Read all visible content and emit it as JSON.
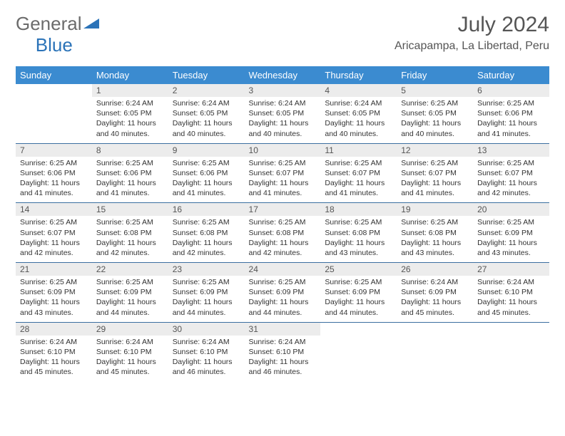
{
  "brand": {
    "word1": "General",
    "word2": "Blue",
    "icon_color": "#2b73b8"
  },
  "title": "July 2024",
  "location": "Aricapampa, La Libertad, Peru",
  "colors": {
    "header_bg": "#3b8bd0",
    "header_fg": "#ffffff",
    "daynum_bg": "#ececec",
    "row_border": "#3b6fa0",
    "text": "#333333",
    "title_color": "#555555"
  },
  "table": {
    "columns": [
      "Sunday",
      "Monday",
      "Tuesday",
      "Wednesday",
      "Thursday",
      "Friday",
      "Saturday"
    ],
    "weeks": [
      [
        {
          "n": "",
          "lines": []
        },
        {
          "n": "1",
          "lines": [
            "Sunrise: 6:24 AM",
            "Sunset: 6:05 PM",
            "Daylight: 11 hours",
            "and 40 minutes."
          ]
        },
        {
          "n": "2",
          "lines": [
            "Sunrise: 6:24 AM",
            "Sunset: 6:05 PM",
            "Daylight: 11 hours",
            "and 40 minutes."
          ]
        },
        {
          "n": "3",
          "lines": [
            "Sunrise: 6:24 AM",
            "Sunset: 6:05 PM",
            "Daylight: 11 hours",
            "and 40 minutes."
          ]
        },
        {
          "n": "4",
          "lines": [
            "Sunrise: 6:24 AM",
            "Sunset: 6:05 PM",
            "Daylight: 11 hours",
            "and 40 minutes."
          ]
        },
        {
          "n": "5",
          "lines": [
            "Sunrise: 6:25 AM",
            "Sunset: 6:05 PM",
            "Daylight: 11 hours",
            "and 40 minutes."
          ]
        },
        {
          "n": "6",
          "lines": [
            "Sunrise: 6:25 AM",
            "Sunset: 6:06 PM",
            "Daylight: 11 hours",
            "and 41 minutes."
          ]
        }
      ],
      [
        {
          "n": "7",
          "lines": [
            "Sunrise: 6:25 AM",
            "Sunset: 6:06 PM",
            "Daylight: 11 hours",
            "and 41 minutes."
          ]
        },
        {
          "n": "8",
          "lines": [
            "Sunrise: 6:25 AM",
            "Sunset: 6:06 PM",
            "Daylight: 11 hours",
            "and 41 minutes."
          ]
        },
        {
          "n": "9",
          "lines": [
            "Sunrise: 6:25 AM",
            "Sunset: 6:06 PM",
            "Daylight: 11 hours",
            "and 41 minutes."
          ]
        },
        {
          "n": "10",
          "lines": [
            "Sunrise: 6:25 AM",
            "Sunset: 6:07 PM",
            "Daylight: 11 hours",
            "and 41 minutes."
          ]
        },
        {
          "n": "11",
          "lines": [
            "Sunrise: 6:25 AM",
            "Sunset: 6:07 PM",
            "Daylight: 11 hours",
            "and 41 minutes."
          ]
        },
        {
          "n": "12",
          "lines": [
            "Sunrise: 6:25 AM",
            "Sunset: 6:07 PM",
            "Daylight: 11 hours",
            "and 41 minutes."
          ]
        },
        {
          "n": "13",
          "lines": [
            "Sunrise: 6:25 AM",
            "Sunset: 6:07 PM",
            "Daylight: 11 hours",
            "and 42 minutes."
          ]
        }
      ],
      [
        {
          "n": "14",
          "lines": [
            "Sunrise: 6:25 AM",
            "Sunset: 6:07 PM",
            "Daylight: 11 hours",
            "and 42 minutes."
          ]
        },
        {
          "n": "15",
          "lines": [
            "Sunrise: 6:25 AM",
            "Sunset: 6:08 PM",
            "Daylight: 11 hours",
            "and 42 minutes."
          ]
        },
        {
          "n": "16",
          "lines": [
            "Sunrise: 6:25 AM",
            "Sunset: 6:08 PM",
            "Daylight: 11 hours",
            "and 42 minutes."
          ]
        },
        {
          "n": "17",
          "lines": [
            "Sunrise: 6:25 AM",
            "Sunset: 6:08 PM",
            "Daylight: 11 hours",
            "and 42 minutes."
          ]
        },
        {
          "n": "18",
          "lines": [
            "Sunrise: 6:25 AM",
            "Sunset: 6:08 PM",
            "Daylight: 11 hours",
            "and 43 minutes."
          ]
        },
        {
          "n": "19",
          "lines": [
            "Sunrise: 6:25 AM",
            "Sunset: 6:08 PM",
            "Daylight: 11 hours",
            "and 43 minutes."
          ]
        },
        {
          "n": "20",
          "lines": [
            "Sunrise: 6:25 AM",
            "Sunset: 6:09 PM",
            "Daylight: 11 hours",
            "and 43 minutes."
          ]
        }
      ],
      [
        {
          "n": "21",
          "lines": [
            "Sunrise: 6:25 AM",
            "Sunset: 6:09 PM",
            "Daylight: 11 hours",
            "and 43 minutes."
          ]
        },
        {
          "n": "22",
          "lines": [
            "Sunrise: 6:25 AM",
            "Sunset: 6:09 PM",
            "Daylight: 11 hours",
            "and 44 minutes."
          ]
        },
        {
          "n": "23",
          "lines": [
            "Sunrise: 6:25 AM",
            "Sunset: 6:09 PM",
            "Daylight: 11 hours",
            "and 44 minutes."
          ]
        },
        {
          "n": "24",
          "lines": [
            "Sunrise: 6:25 AM",
            "Sunset: 6:09 PM",
            "Daylight: 11 hours",
            "and 44 minutes."
          ]
        },
        {
          "n": "25",
          "lines": [
            "Sunrise: 6:25 AM",
            "Sunset: 6:09 PM",
            "Daylight: 11 hours",
            "and 44 minutes."
          ]
        },
        {
          "n": "26",
          "lines": [
            "Sunrise: 6:24 AM",
            "Sunset: 6:09 PM",
            "Daylight: 11 hours",
            "and 45 minutes."
          ]
        },
        {
          "n": "27",
          "lines": [
            "Sunrise: 6:24 AM",
            "Sunset: 6:10 PM",
            "Daylight: 11 hours",
            "and 45 minutes."
          ]
        }
      ],
      [
        {
          "n": "28",
          "lines": [
            "Sunrise: 6:24 AM",
            "Sunset: 6:10 PM",
            "Daylight: 11 hours",
            "and 45 minutes."
          ]
        },
        {
          "n": "29",
          "lines": [
            "Sunrise: 6:24 AM",
            "Sunset: 6:10 PM",
            "Daylight: 11 hours",
            "and 45 minutes."
          ]
        },
        {
          "n": "30",
          "lines": [
            "Sunrise: 6:24 AM",
            "Sunset: 6:10 PM",
            "Daylight: 11 hours",
            "and 46 minutes."
          ]
        },
        {
          "n": "31",
          "lines": [
            "Sunrise: 6:24 AM",
            "Sunset: 6:10 PM",
            "Daylight: 11 hours",
            "and 46 minutes."
          ]
        },
        {
          "n": "",
          "lines": []
        },
        {
          "n": "",
          "lines": []
        },
        {
          "n": "",
          "lines": []
        }
      ]
    ]
  }
}
